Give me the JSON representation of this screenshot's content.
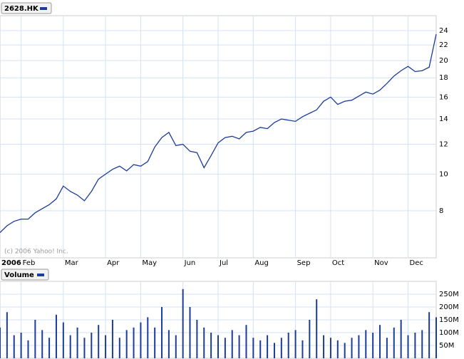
{
  "chart_data": [
    {
      "type": "line",
      "legend": "2628.HK",
      "annotation": "(c) 2006 Yahoo! Inc.",
      "color": "#1c3c9c",
      "log": true,
      "grid": true,
      "values": [
        7.0,
        7.3,
        7.5,
        7.6,
        7.6,
        7.9,
        8.1,
        8.3,
        8.6,
        9.3,
        9.0,
        8.8,
        8.5,
        9.0,
        9.7,
        10.0,
        10.3,
        10.5,
        10.2,
        10.6,
        10.5,
        10.8,
        11.8,
        12.5,
        12.9,
        11.9,
        12.0,
        11.5,
        11.4,
        10.4,
        11.2,
        12.1,
        12.5,
        12.6,
        12.4,
        12.9,
        13.0,
        13.3,
        13.2,
        13.7,
        14.0,
        13.9,
        13.8,
        14.2,
        14.5,
        14.8,
        15.6,
        16.0,
        15.3,
        15.6,
        15.7,
        16.1,
        16.5,
        16.3,
        16.7,
        17.4,
        18.2,
        18.8,
        19.3,
        18.7,
        18.8,
        19.2,
        23.5
      ],
      "xlim": [
        0,
        62
      ],
      "xticks": [
        {
          "value": 0,
          "label": "2006"
        },
        {
          "value": 3,
          "label": "Feb"
        },
        {
          "value": 9,
          "label": "Mar"
        },
        {
          "value": 15,
          "label": "Apr"
        },
        {
          "value": 20,
          "label": "May"
        },
        {
          "value": 26,
          "label": "Jun"
        },
        {
          "value": 31,
          "label": "Jul"
        },
        {
          "value": 36,
          "label": "Aug"
        },
        {
          "value": 42,
          "label": "Sep"
        },
        {
          "value": 47,
          "label": "Oct"
        },
        {
          "value": 53,
          "label": "Nov"
        },
        {
          "value": 58,
          "label": "Dec"
        }
      ],
      "ylim": [
        6.0,
        26.3
      ],
      "yticks": [
        8,
        10,
        12,
        14,
        16,
        18,
        20,
        22,
        24
      ]
    },
    {
      "type": "bar",
      "legend": "Volume",
      "color": "#1c3c9c",
      "grid": true,
      "values": [
        120000000,
        180000000,
        90000000,
        100000000,
        70000000,
        150000000,
        110000000,
        80000000,
        170000000,
        140000000,
        90000000,
        120000000,
        80000000,
        100000000,
        130000000,
        90000000,
        150000000,
        80000000,
        110000000,
        120000000,
        140000000,
        160000000,
        120000000,
        200000000,
        110000000,
        90000000,
        270000000,
        200000000,
        150000000,
        120000000,
        100000000,
        90000000,
        80000000,
        110000000,
        90000000,
        130000000,
        80000000,
        70000000,
        90000000,
        60000000,
        80000000,
        100000000,
        110000000,
        70000000,
        150000000,
        230000000,
        90000000,
        80000000,
        70000000,
        60000000,
        80000000,
        90000000,
        110000000,
        100000000,
        130000000,
        80000000,
        120000000,
        150000000,
        90000000,
        100000000,
        110000000,
        180000000,
        160000000
      ],
      "ylim": [
        0,
        300000000
      ],
      "yticks": [
        {
          "value": 50000000,
          "label": "50M"
        },
        {
          "value": 100000000,
          "label": "100M"
        },
        {
          "value": 150000000,
          "label": "150M"
        },
        {
          "value": 200000000,
          "label": "200M"
        },
        {
          "value": 250000000,
          "label": "250M"
        }
      ]
    }
  ]
}
